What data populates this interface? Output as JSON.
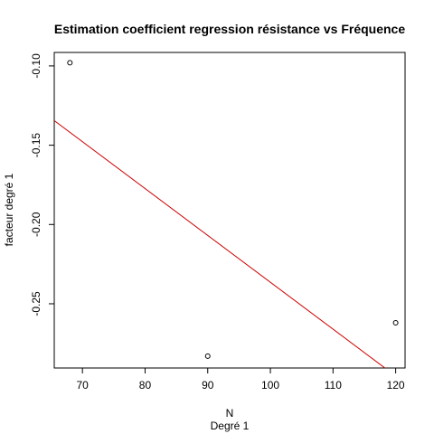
{
  "chart_data": {
    "type": "scatter",
    "title": "Estimation coefficient regression résistance vs Fréquence",
    "xlabel": "N",
    "xsublabel": "Degré 1",
    "ylabel": "facteur degré 1",
    "xlim": [
      65.5,
      121.5
    ],
    "ylim": [
      -0.2905,
      -0.0915
    ],
    "x_ticks": [
      70,
      80,
      90,
      100,
      110,
      120
    ],
    "y_ticks": [
      -0.1,
      -0.15,
      -0.2,
      -0.25
    ],
    "points": [
      {
        "x": 68,
        "y": -0.098
      },
      {
        "x": 90,
        "y": -0.283
      },
      {
        "x": 120,
        "y": -0.262
      }
    ],
    "fit_line": {
      "x": [
        65.5,
        121.5
      ],
      "y": [
        -0.1345,
        -0.3
      ],
      "color": "#cc0000"
    },
    "grid": false,
    "legend": "none",
    "point_color": "#000000"
  }
}
